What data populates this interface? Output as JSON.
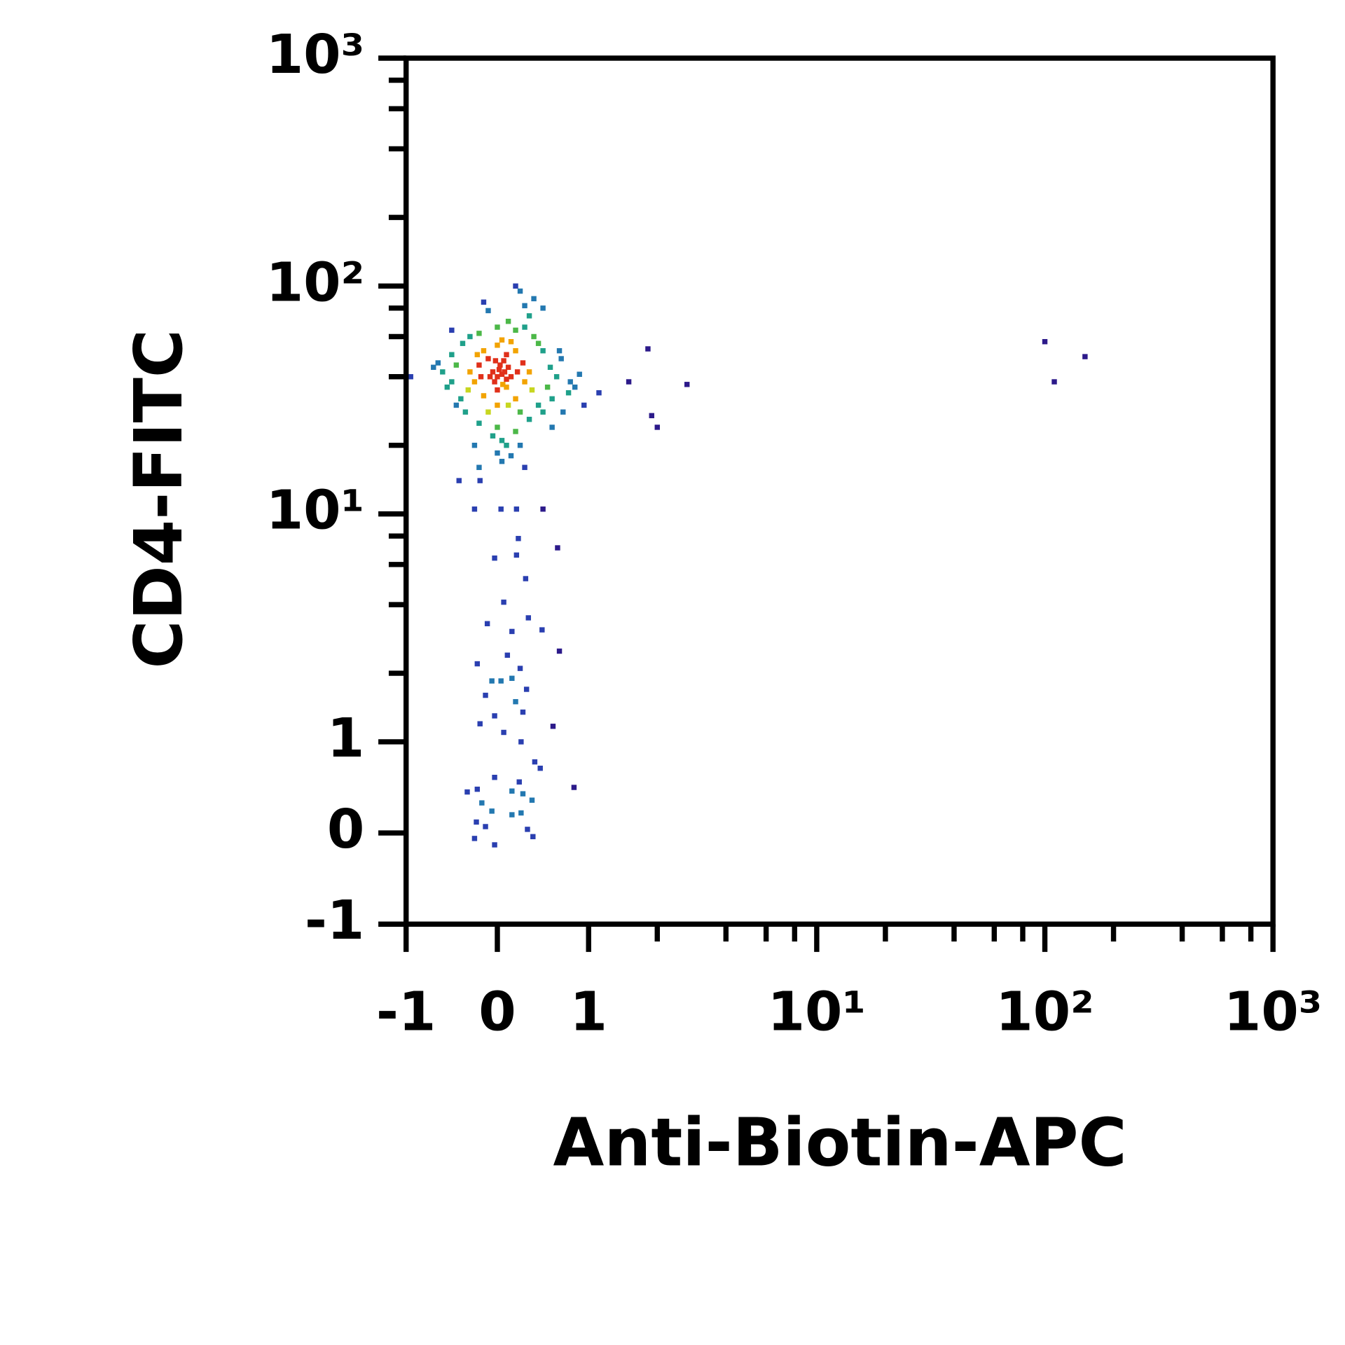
{
  "chart_data": {
    "type": "scatter",
    "xlabel": "Anti-Biotin-APC",
    "ylabel": "CD4-FITC",
    "xscale": "biexponential",
    "yscale": "biexponential",
    "xlim": [
      -1,
      1000
    ],
    "ylim": [
      -1,
      1000
    ],
    "xticks": [
      -1,
      0,
      1,
      {
        "value": 10,
        "label": "10¹"
      },
      {
        "value": 100,
        "label": "10²"
      },
      {
        "value": 1000,
        "label": "10³"
      }
    ],
    "yticks": [
      -1,
      0,
      1,
      {
        "value": 10,
        "label": "10¹"
      },
      {
        "value": 100,
        "label": "10²"
      },
      {
        "value": 1000,
        "label": "10³"
      }
    ],
    "xminorticks": [
      2,
      4,
      6,
      8,
      20,
      40,
      60,
      80,
      200,
      400,
      600,
      800
    ],
    "yminorticks": [
      2,
      4,
      6,
      8,
      20,
      40,
      60,
      80,
      200,
      400,
      600,
      800
    ],
    "colormap": [
      "#2c1a8a",
      "#2a3fb0",
      "#2378b0",
      "#1fa08a",
      "#4cb848",
      "#c7d620",
      "#f2a300",
      "#e0301a"
    ],
    "x": [
      0.0,
      0.05,
      0.1,
      0.02,
      0.08,
      -0.03,
      0.06,
      0.12,
      -0.05,
      0.03,
      0.1,
      0.0,
      0.15,
      -0.08,
      0.07,
      -0.02,
      -0.2,
      -0.25,
      -0.15,
      0.0,
      0.2,
      0.3,
      0.28,
      0.2,
      0.0,
      -0.15,
      -0.3,
      0.35,
      0.25,
      -0.1,
      0.15,
      -0.22,
      0.38,
      -0.32,
      0.1,
      -0.1,
      0.22,
      -0.18,
      0.12,
      0.05,
      -0.45,
      -0.5,
      -0.4,
      -0.35,
      -0.2,
      0.0,
      0.2,
      0.35,
      0.45,
      0.55,
      0.58,
      0.5,
      0.4,
      0.2,
      0.0,
      -0.2,
      -0.38,
      -0.5,
      -0.6,
      0.65,
      0.6,
      0.1,
      0.05,
      -0.05,
      0.25,
      -0.55,
      0.45,
      -0.3,
      0.3,
      0.7,
      -0.65,
      0.8,
      0.78,
      -0.7,
      0.5,
      -0.45,
      0.2,
      0.25,
      0.4,
      0.3,
      -0.15,
      -0.1,
      0.35,
      0.5,
      -0.5,
      0.68,
      0.9,
      0.85,
      -0.95,
      0.05,
      0.0,
      0.15,
      -0.2,
      0.3,
      0.6,
      0.72,
      -0.25,
      0.12,
      0.95,
      -0.42,
      -0.19,
      0.04,
      0.21,
      0.5,
      -0.25,
      0.23,
      0.66,
      -0.03,
      0.21,
      0.31,
      0.07,
      0.34,
      -0.11,
      0.16,
      0.49,
      0.68,
      0.11,
      -0.22,
      0.25,
      0.16,
      -0.06,
      0.04,
      0.32,
      -0.13,
      0.2,
      -0.03,
      0.28,
      -0.19,
      0.07,
      0.61,
      0.26,
      0.41,
      0.47,
      -0.03,
      -0.22,
      -0.33,
      0.84,
      0.24,
      0.16,
      0.28,
      0.38,
      -0.17,
      -0.06,
      0.16,
      0.26,
      -0.23,
      0.33,
      -0.13,
      -0.25,
      -0.03,
      0.39,
      1.82,
      1.5,
      2.7,
      1.89,
      2.0,
      1.11,
      100,
      110,
      150
    ],
    "values": [
      40,
      41,
      39,
      43,
      42,
      38,
      37,
      44,
      42,
      45,
      36,
      35,
      40,
      40,
      47,
      47,
      45,
      38,
      33,
      30,
      32,
      38,
      46,
      52,
      55,
      52,
      42,
      42,
      28,
      28,
      57,
      50,
      35,
      35,
      50,
      48,
      42,
      40,
      30,
      58,
      45,
      38,
      32,
      28,
      25,
      24,
      23,
      26,
      30,
      36,
      44,
      52,
      60,
      64,
      66,
      62,
      56,
      50,
      42,
      40,
      32,
      20,
      21,
      22,
      20,
      36,
      56,
      60,
      66,
      48,
      46,
      38,
      34,
      44,
      28,
      30,
      100,
      95,
      88,
      82,
      85,
      78,
      74,
      80,
      64,
      52,
      41,
      36,
      40,
      17,
      18.5,
      18,
      16,
      16,
      24,
      28,
      20,
      70,
      30,
      14,
      14,
      10.5,
      10.5,
      10.5,
      10.5,
      7.8,
      7.1,
      6.4,
      6.6,
      5.2,
      4.1,
      3.5,
      3.3,
      3.05,
      3.1,
      2.5,
      2.4,
      2.2,
      2.1,
      1.9,
      1.85,
      1.85,
      1.7,
      1.6,
      1.5,
      1.3,
      1.35,
      1.2,
      1.1,
      1.17,
      1.0,
      0.78,
      0.71,
      0.61,
      0.48,
      0.45,
      0.5,
      0.56,
      0.46,
      0.43,
      0.36,
      0.33,
      0.24,
      0.2,
      0.22,
      0.12,
      0.04,
      0.07,
      -0.06,
      -0.13,
      -0.04,
      53,
      38,
      37,
      27,
      24,
      34,
      57,
      38,
      49
    ]
  }
}
